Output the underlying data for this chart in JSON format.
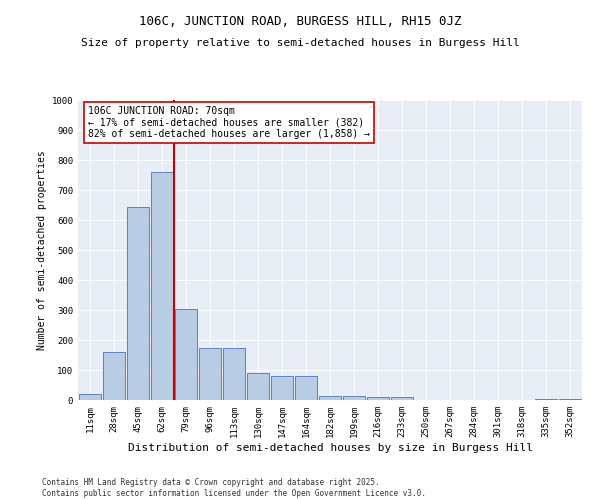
{
  "title": "106C, JUNCTION ROAD, BURGESS HILL, RH15 0JZ",
  "subtitle": "Size of property relative to semi-detached houses in Burgess Hill",
  "xlabel": "Distribution of semi-detached houses by size in Burgess Hill",
  "ylabel": "Number of semi-detached properties",
  "bins": [
    "11sqm",
    "28sqm",
    "45sqm",
    "62sqm",
    "79sqm",
    "96sqm",
    "113sqm",
    "130sqm",
    "147sqm",
    "164sqm",
    "182sqm",
    "199sqm",
    "216sqm",
    "233sqm",
    "250sqm",
    "267sqm",
    "284sqm",
    "301sqm",
    "318sqm",
    "335sqm",
    "352sqm"
  ],
  "values": [
    20,
    160,
    645,
    760,
    305,
    175,
    175,
    90,
    80,
    80,
    15,
    15,
    10,
    10,
    0,
    0,
    0,
    0,
    0,
    5,
    5
  ],
  "bar_color": "#b8cce4",
  "bar_edge_color": "#4472c4",
  "vline_x_pos": 3.5,
  "vline_color": "#cc0000",
  "annotation_text": "106C JUNCTION ROAD: 70sqm\n← 17% of semi-detached houses are smaller (382)\n82% of semi-detached houses are larger (1,858) →",
  "annotation_box_color": "#ffffff",
  "annotation_box_edge": "#cc0000",
  "ylim": [
    0,
    1000
  ],
  "yticks": [
    0,
    100,
    200,
    300,
    400,
    500,
    600,
    700,
    800,
    900,
    1000
  ],
  "background_color": "#e8eef5",
  "footer_line1": "Contains HM Land Registry data © Crown copyright and database right 2025.",
  "footer_line2": "Contains public sector information licensed under the Open Government Licence v3.0.",
  "title_fontsize": 9,
  "subtitle_fontsize": 8,
  "xlabel_fontsize": 8,
  "ylabel_fontsize": 7,
  "tick_fontsize": 6.5,
  "annotation_fontsize": 7,
  "footer_fontsize": 5.5
}
